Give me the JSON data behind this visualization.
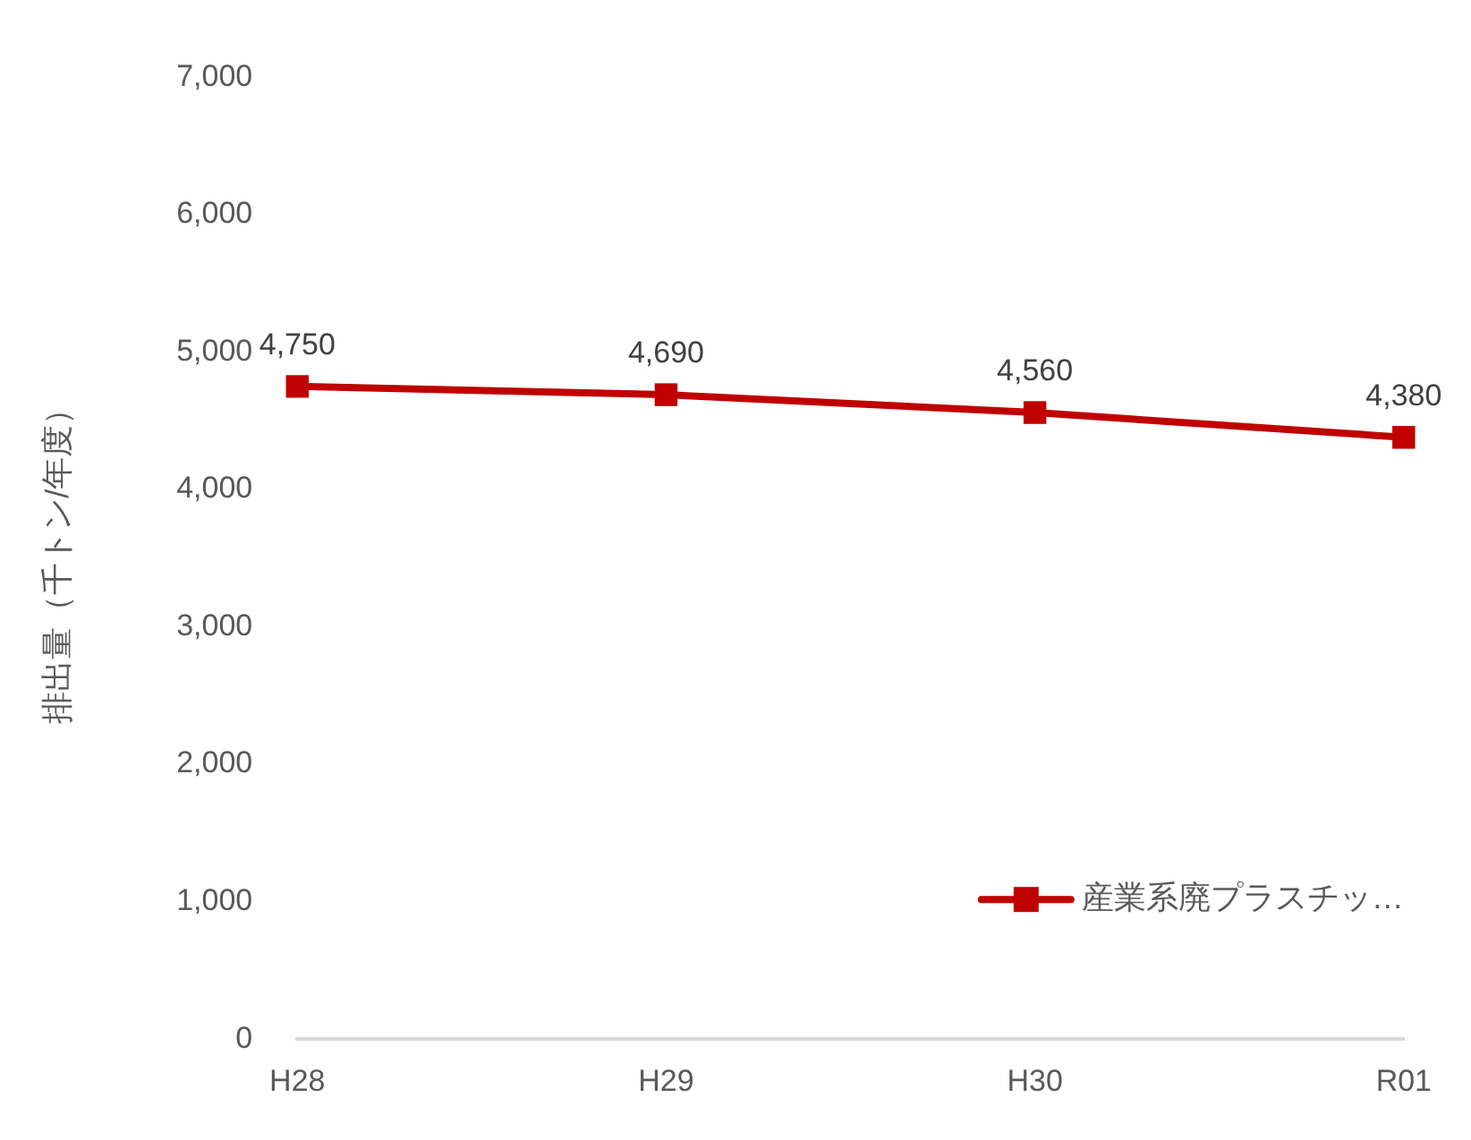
{
  "chart_data": {
    "type": "line",
    "ylabel": "排出量（千トン/年度）",
    "categories": [
      "H28",
      "H29",
      "H30",
      "R01"
    ],
    "series": [
      {
        "name": "産業系廃プラスチッ…",
        "color": "#c00000",
        "values": [
          4750,
          4690,
          4560,
          4380
        ],
        "value_labels": [
          "4,750",
          "4,690",
          "4,560",
          "4,380"
        ]
      }
    ],
    "ylim": [
      0,
      7000
    ],
    "yticks": [
      {
        "value": 0,
        "label": "0"
      },
      {
        "value": 1000,
        "label": "1,000"
      },
      {
        "value": 2000,
        "label": "2,000"
      },
      {
        "value": 3000,
        "label": "3,000"
      },
      {
        "value": 4000,
        "label": "4,000"
      },
      {
        "value": 5000,
        "label": "5,000"
      },
      {
        "value": 6000,
        "label": "6,000"
      },
      {
        "value": 7000,
        "label": "7,000"
      }
    ],
    "grid": false,
    "legend": "bottom right",
    "marker": "square",
    "line_style": "solid"
  }
}
